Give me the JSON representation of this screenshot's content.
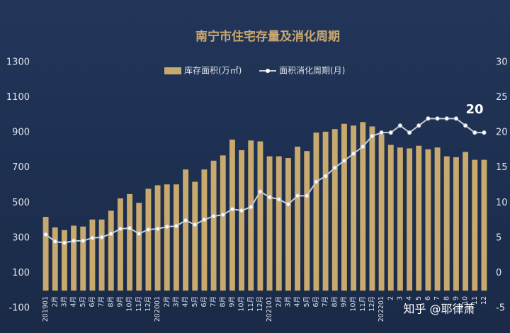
{
  "chart_data": {
    "type": "bar-line",
    "title": "南宁市住宅存量及消化周期",
    "categories": [
      "201901",
      "2月",
      "3月",
      "4月",
      "5月",
      "6月",
      "7月",
      "8月",
      "9月",
      "10月",
      "11月",
      "12月",
      "202001",
      "2月",
      "3月",
      "4月",
      "5月",
      "6月",
      "7月",
      "8月",
      "9月",
      "10月",
      "11月",
      "12月",
      "202101",
      "2月",
      "3月",
      "4月",
      "5月",
      "6月",
      "7月",
      "8月",
      "9月",
      "10月",
      "11月",
      "12月",
      "202201",
      "2",
      "3",
      "4",
      "5",
      "6",
      "7",
      "8",
      "9",
      "10",
      "11",
      "12"
    ],
    "series": [
      {
        "name": "库存面积(万㎡)",
        "type": "bar",
        "color": "#c8a96e",
        "values": [
          420,
          360,
          345,
          370,
          365,
          405,
          405,
          455,
          525,
          550,
          500,
          580,
          600,
          605,
          605,
          690,
          620,
          690,
          740,
          770,
          860,
          800,
          855,
          850,
          765,
          765,
          755,
          820,
          795,
          900,
          905,
          920,
          950,
          940,
          960,
          935,
          890,
          830,
          815,
          810,
          825,
          805,
          815,
          765,
          760,
          790,
          745,
          745
        ]
      },
      {
        "name": "面积消化周期(月)",
        "type": "line",
        "axis": "y2",
        "color": "#c8ccd4",
        "values": [
          5.5,
          4.5,
          4.3,
          4.6,
          4.6,
          5,
          5.1,
          5.6,
          6.3,
          6.4,
          5.6,
          6.2,
          6.3,
          6.6,
          6.7,
          7.5,
          6.9,
          7.6,
          8.1,
          8.3,
          9.1,
          8.9,
          9.4,
          11.6,
          10.8,
          10.5,
          9.8,
          11,
          11,
          13,
          13.8,
          15,
          16,
          17,
          18,
          19.5,
          20,
          20,
          21,
          20,
          21,
          22,
          22,
          22,
          22,
          21,
          20,
          20
        ]
      }
    ],
    "ylim": [
      -100,
      1300
    ],
    "yticks": [
      -100,
      100,
      300,
      500,
      700,
      900,
      1100,
      1300
    ],
    "y2lim": [
      -5,
      30
    ],
    "y2ticks": [
      -5,
      0,
      5,
      10,
      15,
      20,
      25,
      30
    ],
    "annotations": [
      "20",
      "知乎 @耶律萧"
    ]
  }
}
